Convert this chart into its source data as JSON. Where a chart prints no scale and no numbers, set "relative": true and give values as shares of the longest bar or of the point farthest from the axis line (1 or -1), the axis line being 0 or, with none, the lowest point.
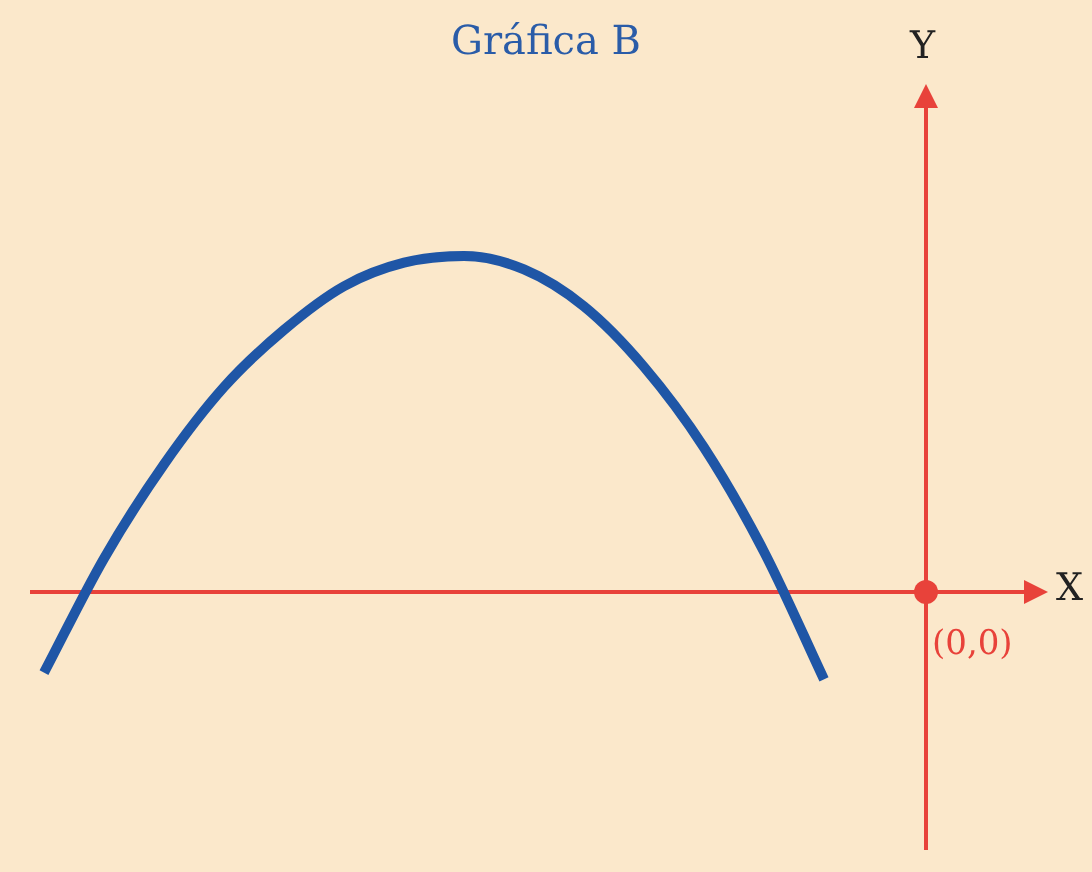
{
  "chart_data": {
    "type": "line",
    "title": "Gráfica B",
    "relative": true,
    "color": "#1f56a6",
    "annotations": [
      "Y",
      "X",
      "(0,0)"
    ],
    "ref_lines": [
      {
        "axis": "y",
        "value": 0,
        "color": "#e8423a"
      }
    ],
    "categories": [
      null,
      null,
      null,
      null,
      null,
      null,
      null,
      null,
      null,
      null,
      null,
      null,
      null,
      null
    ],
    "values": [
      -0.24,
      0.1,
      0.38,
      0.61,
      0.78,
      0.91,
      0.98,
      1.0,
      0.96,
      0.85,
      0.67,
      0.43,
      0.12,
      -0.26
    ]
  }
}
